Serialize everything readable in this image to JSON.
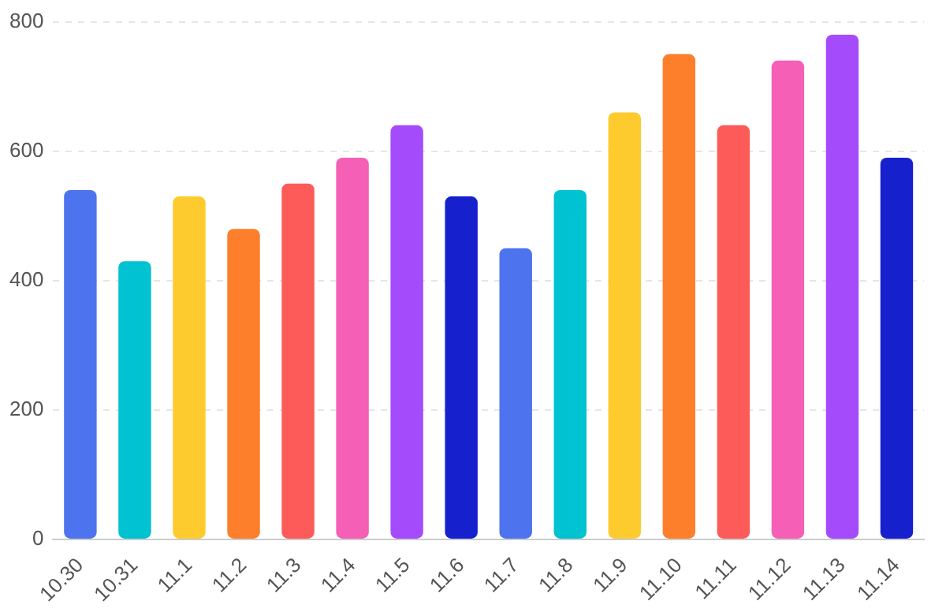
{
  "chart_data": {
    "type": "bar",
    "categories": [
      "10.30",
      "10.31",
      "11.1",
      "11.2",
      "11.3",
      "11.4",
      "11.5",
      "11.6",
      "11.7",
      "11.8",
      "11.9",
      "11.10",
      "11.11",
      "11.12",
      "11.13",
      "11.14"
    ],
    "values": [
      540,
      430,
      530,
      480,
      550,
      590,
      640,
      530,
      450,
      540,
      660,
      750,
      640,
      740,
      780,
      590
    ],
    "colors": [
      "#4e73ee",
      "#00c2d0",
      "#fecb2e",
      "#fd7f2c",
      "#fd5a5a",
      "#f55fb5",
      "#a44bfb",
      "#1720cd",
      "#4e73ee",
      "#00c2d0",
      "#fecb2e",
      "#fd7f2c",
      "#fd5a5a",
      "#f55fb5",
      "#a44bfb",
      "#1720cd"
    ],
    "ylim": [
      0,
      800
    ],
    "yticks": [
      0,
      200,
      400,
      600,
      800
    ],
    "grid": "y",
    "legend": false
  }
}
